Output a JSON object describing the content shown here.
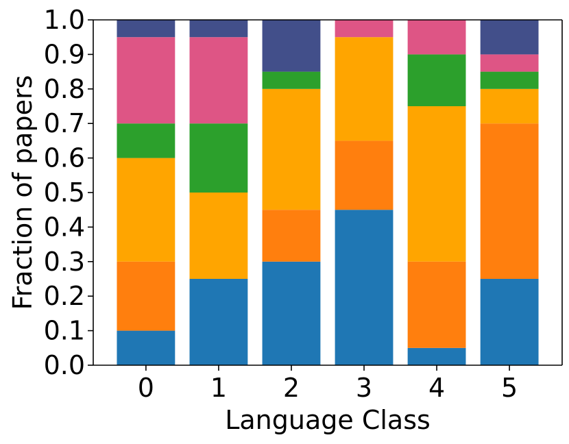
{
  "chart_data": {
    "type": "bar",
    "stacked": true,
    "title": "",
    "xlabel": "Language Class",
    "ylabel": "Fraction of papers",
    "categories": [
      "0",
      "1",
      "2",
      "3",
      "4",
      "5"
    ],
    "ylim": [
      0,
      1.0
    ],
    "yticks": [
      "0.0",
      "0.1",
      "0.2",
      "0.3",
      "0.4",
      "0.5",
      "0.6",
      "0.7",
      "0.8",
      "0.9",
      "1.0"
    ],
    "grid": false,
    "legend": "none",
    "series": [
      {
        "color": "#1f77b4",
        "values": [
          0.1,
          0.25,
          0.3,
          0.45,
          0.05,
          0.25
        ]
      },
      {
        "color": "#ff7f0e",
        "values": [
          0.2,
          0.0,
          0.15,
          0.2,
          0.25,
          0.45
        ]
      },
      {
        "color": "#ffa500",
        "values": [
          0.3,
          0.25,
          0.35,
          0.3,
          0.45,
          0.1
        ]
      },
      {
        "color": "#2ca02c",
        "values": [
          0.1,
          0.2,
          0.05,
          0.0,
          0.15,
          0.05
        ]
      },
      {
        "color": "#de5585",
        "values": [
          0.25,
          0.25,
          0.0,
          0.05,
          0.1,
          0.05
        ]
      },
      {
        "color": "#424f8a",
        "values": [
          0.05,
          0.05,
          0.15,
          0.0,
          0.0,
          0.1
        ]
      }
    ]
  }
}
